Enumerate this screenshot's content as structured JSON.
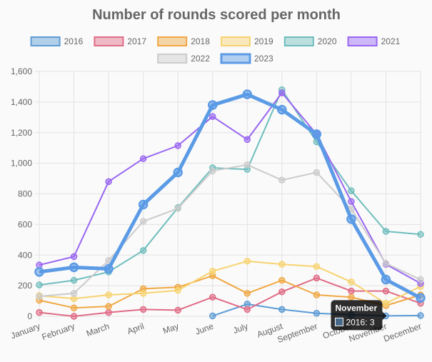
{
  "chart_data": {
    "type": "line",
    "title": "Number of rounds scored per month",
    "xlabel": "",
    "ylabel": "",
    "ylim": [
      0,
      1600
    ],
    "y_ticks": [
      "0",
      "200",
      "400",
      "600",
      "800",
      "1,000",
      "1,200",
      "1,400",
      "1,600"
    ],
    "categories": [
      "January",
      "February",
      "March",
      "April",
      "May",
      "June",
      "July",
      "August",
      "September",
      "October",
      "November",
      "December"
    ],
    "legend_position": "top",
    "grid": true,
    "series": [
      {
        "name": "2016",
        "color": "#5b9bd5",
        "values": [
          null,
          null,
          null,
          null,
          null,
          3,
          80,
          45,
          20,
          10,
          3,
          5
        ]
      },
      {
        "name": "2017",
        "color": "#e06b85",
        "values": [
          25,
          0,
          25,
          45,
          40,
          125,
          45,
          160,
          250,
          165,
          165,
          85
        ]
      },
      {
        "name": "2018",
        "color": "#f0a844",
        "values": [
          105,
          55,
          65,
          180,
          190,
          265,
          150,
          235,
          140,
          125,
          70,
          140
        ]
      },
      {
        "name": "2019",
        "color": "#f7d36f",
        "values": [
          135,
          115,
          140,
          150,
          170,
          295,
          360,
          340,
          325,
          225,
          85,
          195
        ]
      },
      {
        "name": "2020",
        "color": "#6fbdbd",
        "values": [
          205,
          235,
          290,
          430,
          710,
          970,
          960,
          1480,
          1140,
          820,
          555,
          535
        ]
      },
      {
        "name": "2021",
        "color": "#9966f2",
        "values": [
          335,
          390,
          880,
          1030,
          1115,
          1305,
          1155,
          1460,
          1190,
          750,
          340,
          215
        ]
      },
      {
        "name": "2022",
        "color": "#cbcbcb",
        "values": [
          130,
          150,
          365,
          620,
          705,
          950,
          990,
          890,
          940,
          700,
          345,
          240
        ]
      },
      {
        "name": "2023",
        "color": "#5b9be6",
        "values": [
          290,
          320,
          310,
          730,
          940,
          1380,
          1450,
          1350,
          1190,
          635,
          240,
          120
        ]
      }
    ],
    "tooltip": {
      "title": "November",
      "label": "2016: 3"
    }
  }
}
